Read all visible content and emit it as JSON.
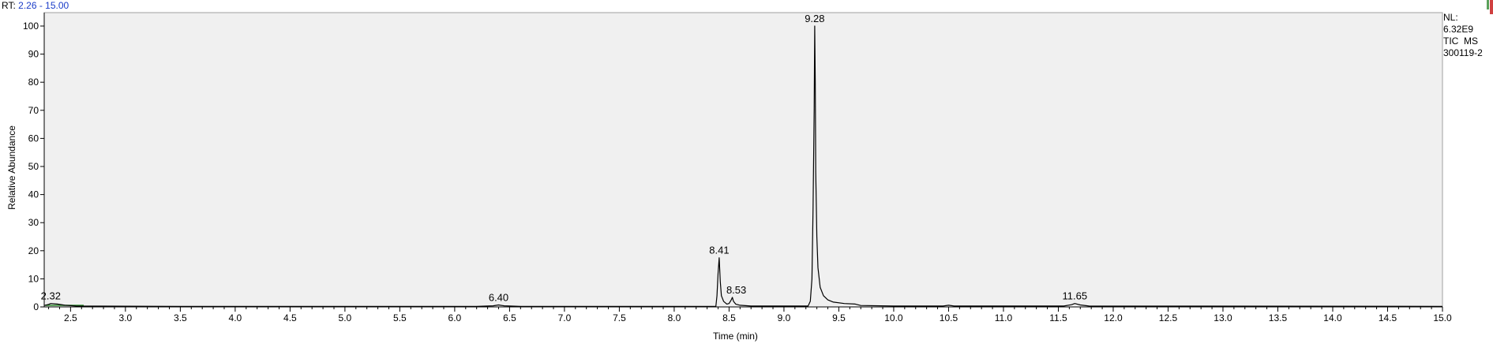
{
  "header": {
    "rt_prefix": "RT:",
    "rt_range": "2.26 - 15.00"
  },
  "side_info": {
    "nl_label": "NL:",
    "nl_value": "6.32E9",
    "scan_type": "TIC  MS",
    "sample": "300119-2"
  },
  "colors": {
    "background": "#f0f0f0",
    "trace": "#000000",
    "header_range": "#1a3cc8",
    "baseline_green": "#2e8b2e"
  },
  "chart_data": {
    "type": "line",
    "xlabel": "Time (min)",
    "ylabel": "Relative Abundance",
    "xlim": [
      2.26,
      15.0
    ],
    "ylim": [
      0,
      100
    ],
    "x_major_ticks": [
      2.5,
      3.0,
      3.5,
      4.0,
      4.5,
      5.0,
      5.5,
      6.0,
      6.5,
      7.0,
      7.5,
      8.0,
      8.5,
      9.0,
      9.5,
      10.0,
      10.5,
      11.0,
      11.5,
      12.0,
      12.5,
      13.0,
      13.5,
      14.0,
      14.5,
      15.0
    ],
    "x_tick_labels": [
      "2.5",
      "3.0",
      "3.5",
      "4.0",
      "4.5",
      "5.0",
      "5.5",
      "6.0",
      "6.5",
      "7.0",
      "7.5",
      "8.0",
      "8.5",
      "9.0",
      "9.5",
      "10.0",
      "10.5",
      "11.0",
      "11.5",
      "12.0",
      "12.5",
      "13.0",
      "13.5",
      "14.0",
      "14.5",
      "15.0"
    ],
    "y_ticks": [
      0,
      10,
      20,
      30,
      40,
      50,
      60,
      70,
      80,
      90,
      100
    ],
    "y_tick_labels": [
      "0",
      "10",
      "20",
      "30",
      "40",
      "50",
      "60",
      "70",
      "80",
      "90",
      "100"
    ],
    "series": [
      {
        "points": [
          [
            2.26,
            0.5
          ],
          [
            2.3,
            0.9
          ],
          [
            2.32,
            1.2
          ],
          [
            2.38,
            1.0
          ],
          [
            2.45,
            0.6
          ],
          [
            2.55,
            0.3
          ],
          [
            3.5,
            0.2
          ],
          [
            6.2,
            0.2
          ],
          [
            6.35,
            0.4
          ],
          [
            6.4,
            0.7
          ],
          [
            6.45,
            0.4
          ],
          [
            6.6,
            0.2
          ],
          [
            8.38,
            0.2
          ],
          [
            8.39,
            4.0
          ],
          [
            8.4,
            12.0
          ],
          [
            8.41,
            17.5
          ],
          [
            8.42,
            9.0
          ],
          [
            8.43,
            4.0
          ],
          [
            8.45,
            2.0
          ],
          [
            8.48,
            1.0
          ],
          [
            8.5,
            1.2
          ],
          [
            8.52,
            2.5
          ],
          [
            8.53,
            3.4
          ],
          [
            8.54,
            2.0
          ],
          [
            8.56,
            1.0
          ],
          [
            8.6,
            0.6
          ],
          [
            8.7,
            0.3
          ],
          [
            9.22,
            0.3
          ],
          [
            9.24,
            2.0
          ],
          [
            9.255,
            10.0
          ],
          [
            9.265,
            35.0
          ],
          [
            9.275,
            70.0
          ],
          [
            9.28,
            100.0
          ],
          [
            9.285,
            80.0
          ],
          [
            9.29,
            48.0
          ],
          [
            9.3,
            25.0
          ],
          [
            9.31,
            14.0
          ],
          [
            9.33,
            7.0
          ],
          [
            9.36,
            4.0
          ],
          [
            9.4,
            2.5
          ],
          [
            9.45,
            1.7
          ],
          [
            9.55,
            1.2
          ],
          [
            9.65,
            1.0
          ],
          [
            9.7,
            0.5
          ],
          [
            10.0,
            0.3
          ],
          [
            10.45,
            0.3
          ],
          [
            10.5,
            0.6
          ],
          [
            10.55,
            0.3
          ],
          [
            11.55,
            0.3
          ],
          [
            11.62,
            0.8
          ],
          [
            11.65,
            1.2
          ],
          [
            11.7,
            0.7
          ],
          [
            11.78,
            0.3
          ],
          [
            15.0,
            0.2
          ]
        ]
      }
    ],
    "peak_labels": [
      {
        "x": 2.32,
        "y": 1.2,
        "label": "2.32"
      },
      {
        "x": 6.4,
        "y": 0.7,
        "label": "6.40"
      },
      {
        "x": 8.41,
        "y": 17.5,
        "label": "8.41"
      },
      {
        "x": 8.53,
        "y": 3.4,
        "label": "8.53"
      },
      {
        "x": 9.28,
        "y": 100.0,
        "label": "9.28"
      },
      {
        "x": 11.65,
        "y": 1.2,
        "label": "11.65"
      }
    ]
  }
}
